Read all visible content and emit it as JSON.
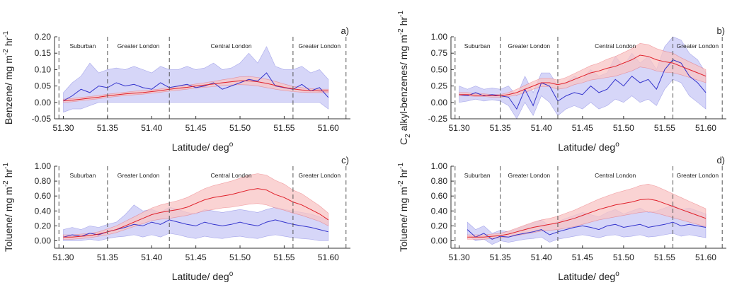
{
  "colors": {
    "blue": "#3333cc",
    "blue_fill": "#c8c8f6",
    "red": "#e0202a",
    "red_fill": "#f8c4c4",
    "axis": "#333333"
  },
  "xlabel_text": "Latitude/ deg",
  "xlabel_sup": "o",
  "regions": [
    "Suburban",
    "Greater London",
    "Central London",
    "Greater London"
  ],
  "chart_data": [
    {
      "type": "line",
      "panel": "a)",
      "ylabel_parts": [
        "Benzene/ mg m",
        "-2",
        " hr",
        "-1"
      ],
      "xlim": [
        51.29,
        51.625
      ],
      "ylim": [
        -0.05,
        0.2
      ],
      "xticks": [
        "51.30",
        "51.35",
        "51.40",
        "51.45",
        "51.50",
        "51.55",
        "51.60"
      ],
      "yticks": [
        "-0.05",
        "0.00",
        "0.05",
        "0.10",
        "0.15",
        "0.20"
      ],
      "boundaries": [
        51.295,
        51.35,
        51.42,
        51.56,
        51.62
      ],
      "x": [
        51.3,
        51.31,
        51.32,
        51.33,
        51.34,
        51.35,
        51.36,
        51.37,
        51.38,
        51.39,
        51.4,
        51.41,
        51.42,
        51.43,
        51.44,
        51.45,
        51.46,
        51.47,
        51.48,
        51.49,
        51.5,
        51.51,
        51.52,
        51.53,
        51.54,
        51.55,
        51.56,
        51.57,
        51.58,
        51.59,
        51.6
      ],
      "series": [
        {
          "color": "blue",
          "mean": [
            0.005,
            0.02,
            0.04,
            0.03,
            0.05,
            0.045,
            0.06,
            0.05,
            0.055,
            0.045,
            0.04,
            0.06,
            0.045,
            0.05,
            0.055,
            0.045,
            0.05,
            0.06,
            0.04,
            0.05,
            0.06,
            0.07,
            0.065,
            0.09,
            0.05,
            0.045,
            0.04,
            0.055,
            0.035,
            0.045,
            0.015
          ],
          "lower": [
            -0.03,
            -0.02,
            -0.02,
            -0.01,
            0.0,
            0.0,
            0.0,
            0.0,
            0.0,
            0.0,
            0.0,
            0.0,
            0.0,
            0.0,
            0.0,
            0.0,
            0.0,
            0.0,
            0.0,
            0.0,
            0.0,
            0.0,
            0.0,
            0.0,
            0.0,
            0.0,
            0.0,
            0.0,
            0.0,
            0.0,
            -0.02
          ],
          "upper": [
            0.03,
            0.06,
            0.08,
            0.12,
            0.09,
            0.1,
            0.105,
            0.1,
            0.11,
            0.1,
            0.09,
            0.11,
            0.1,
            0.1,
            0.11,
            0.1,
            0.105,
            0.12,
            0.1,
            0.105,
            0.12,
            0.15,
            0.12,
            0.17,
            0.11,
            0.1,
            0.1,
            0.11,
            0.09,
            0.1,
            0.07
          ]
        },
        {
          "color": "red",
          "mean": [
            0.005,
            0.007,
            0.01,
            0.013,
            0.016,
            0.02,
            0.023,
            0.026,
            0.028,
            0.03,
            0.033,
            0.036,
            0.04,
            0.043,
            0.046,
            0.05,
            0.053,
            0.056,
            0.06,
            0.063,
            0.066,
            0.066,
            0.063,
            0.058,
            0.052,
            0.046,
            0.041,
            0.038,
            0.036,
            0.035,
            0.035
          ],
          "lower": [
            0.0,
            0.002,
            0.005,
            0.008,
            0.011,
            0.015,
            0.018,
            0.021,
            0.023,
            0.025,
            0.028,
            0.031,
            0.034,
            0.037,
            0.04,
            0.044,
            0.046,
            0.048,
            0.051,
            0.053,
            0.054,
            0.053,
            0.05,
            0.045,
            0.04,
            0.036,
            0.033,
            0.031,
            0.03,
            0.03,
            0.03
          ],
          "upper": [
            0.01,
            0.012,
            0.015,
            0.018,
            0.021,
            0.025,
            0.028,
            0.031,
            0.034,
            0.036,
            0.038,
            0.041,
            0.046,
            0.049,
            0.052,
            0.056,
            0.06,
            0.064,
            0.069,
            0.073,
            0.078,
            0.079,
            0.076,
            0.071,
            0.064,
            0.056,
            0.049,
            0.045,
            0.042,
            0.04,
            0.04
          ]
        }
      ]
    },
    {
      "type": "line",
      "panel": "b)",
      "ylabel_parts": [
        "C",
        "2",
        " alkyl-benzenes/ mg m",
        "-2",
        " hr",
        "-1"
      ],
      "xlim": [
        51.29,
        51.625
      ],
      "ylim": [
        -0.25,
        1.0
      ],
      "xticks": [
        "51.30",
        "51.35",
        "51.40",
        "51.45",
        "51.50",
        "51.55",
        "51.60"
      ],
      "yticks": [
        "-0.25",
        "0.00",
        "0.25",
        "0.50",
        "0.75",
        "1.00"
      ],
      "boundaries": [
        51.295,
        51.35,
        51.42,
        51.56,
        51.62
      ],
      "x": [
        51.3,
        51.31,
        51.32,
        51.33,
        51.34,
        51.35,
        51.36,
        51.37,
        51.38,
        51.39,
        51.4,
        51.41,
        51.42,
        51.43,
        51.44,
        51.45,
        51.46,
        51.47,
        51.48,
        51.49,
        51.5,
        51.51,
        51.52,
        51.53,
        51.54,
        51.55,
        51.56,
        51.57,
        51.58,
        51.59,
        51.6
      ],
      "series": [
        {
          "color": "blue",
          "mean": [
            0.12,
            0.1,
            0.15,
            0.1,
            0.12,
            0.1,
            0.08,
            -0.1,
            0.2,
            -0.05,
            0.3,
            0.25,
            0.02,
            0.1,
            0.15,
            0.12,
            0.25,
            0.15,
            0.2,
            0.35,
            0.25,
            0.4,
            0.3,
            0.35,
            0.2,
            0.5,
            0.65,
            0.6,
            0.4,
            0.3,
            0.15
          ],
          "lower": [
            0.0,
            0.02,
            0.05,
            0.02,
            0.04,
            0.02,
            -0.05,
            -0.25,
            0.0,
            -0.2,
            0.1,
            0.0,
            -0.2,
            -0.1,
            -0.05,
            -0.1,
            0.0,
            -0.1,
            -0.05,
            0.05,
            0.0,
            0.1,
            0.0,
            0.05,
            -0.05,
            0.2,
            0.35,
            0.3,
            0.1,
            0.0,
            -0.1
          ],
          "upper": [
            0.25,
            0.2,
            0.25,
            0.2,
            0.22,
            0.2,
            0.25,
            0.1,
            0.4,
            0.15,
            0.45,
            0.45,
            0.25,
            0.3,
            0.4,
            0.35,
            0.5,
            0.4,
            0.45,
            0.7,
            0.55,
            0.75,
            0.6,
            0.7,
            0.5,
            0.85,
            1.0,
            0.95,
            0.75,
            0.65,
            0.45
          ]
        },
        {
          "color": "red",
          "mean": [
            0.12,
            0.12,
            0.11,
            0.11,
            0.1,
            0.1,
            0.12,
            0.15,
            0.2,
            0.25,
            0.3,
            0.3,
            0.27,
            0.3,
            0.35,
            0.4,
            0.45,
            0.48,
            0.52,
            0.55,
            0.6,
            0.65,
            0.72,
            0.7,
            0.65,
            0.62,
            0.6,
            0.55,
            0.5,
            0.45,
            0.4
          ],
          "lower": [
            0.1,
            0.1,
            0.09,
            0.09,
            0.08,
            0.08,
            0.09,
            0.11,
            0.15,
            0.2,
            0.24,
            0.24,
            0.2,
            0.22,
            0.27,
            0.3,
            0.34,
            0.36,
            0.38,
            0.4,
            0.44,
            0.48,
            0.54,
            0.52,
            0.48,
            0.46,
            0.45,
            0.42,
            0.38,
            0.34,
            0.3
          ],
          "upper": [
            0.15,
            0.15,
            0.13,
            0.13,
            0.12,
            0.12,
            0.15,
            0.2,
            0.26,
            0.32,
            0.37,
            0.37,
            0.34,
            0.38,
            0.44,
            0.5,
            0.56,
            0.6,
            0.66,
            0.7,
            0.76,
            0.82,
            0.9,
            0.88,
            0.82,
            0.78,
            0.75,
            0.68,
            0.62,
            0.56,
            0.5
          ]
        }
      ]
    },
    {
      "type": "line",
      "panel": "c)",
      "ylabel_parts": [
        "Toluene/ mg m",
        "-2",
        " hr",
        "-1"
      ],
      "xlim": [
        51.29,
        51.625
      ],
      "ylim": [
        -0.1,
        1.0
      ],
      "xticks": [
        "51.30",
        "51.35",
        "51.40",
        "51.45",
        "51.50",
        "51.55",
        "51.60"
      ],
      "yticks": [
        "0.00",
        "0.20",
        "0.40",
        "0.60",
        "0.80",
        "1.00"
      ],
      "boundaries": [
        51.295,
        51.35,
        51.42,
        51.56,
        51.62
      ],
      "x": [
        51.3,
        51.31,
        51.32,
        51.33,
        51.34,
        51.35,
        51.36,
        51.37,
        51.38,
        51.39,
        51.4,
        51.41,
        51.42,
        51.43,
        51.44,
        51.45,
        51.46,
        51.47,
        51.48,
        51.49,
        51.5,
        51.51,
        51.52,
        51.53,
        51.54,
        51.55,
        51.56,
        51.57,
        51.58,
        51.59,
        51.6
      ],
      "series": [
        {
          "color": "blue",
          "mean": [
            0.05,
            0.08,
            0.06,
            0.1,
            0.08,
            0.12,
            0.15,
            0.18,
            0.22,
            0.2,
            0.25,
            0.22,
            0.28,
            0.25,
            0.22,
            0.2,
            0.25,
            0.22,
            0.2,
            0.22,
            0.25,
            0.22,
            0.2,
            0.25,
            0.28,
            0.25,
            0.22,
            0.2,
            0.18,
            0.15,
            0.12
          ],
          "lower": [
            0.0,
            0.0,
            0.0,
            0.02,
            0.0,
            0.03,
            0.05,
            0.06,
            0.08,
            0.05,
            0.08,
            0.05,
            0.1,
            0.08,
            0.05,
            0.03,
            0.06,
            0.04,
            0.03,
            0.05,
            0.06,
            0.04,
            0.03,
            0.06,
            0.08,
            0.06,
            0.04,
            0.03,
            0.02,
            0.0,
            0.0
          ],
          "upper": [
            0.15,
            0.18,
            0.15,
            0.2,
            0.18,
            0.22,
            0.25,
            0.35,
            0.48,
            0.4,
            0.42,
            0.38,
            0.45,
            0.42,
            0.38,
            0.36,
            0.42,
            0.4,
            0.38,
            0.4,
            0.42,
            0.4,
            0.38,
            0.42,
            0.45,
            0.42,
            0.4,
            0.38,
            0.36,
            0.32,
            0.28
          ]
        },
        {
          "color": "red",
          "mean": [
            0.05,
            0.05,
            0.06,
            0.07,
            0.09,
            0.12,
            0.15,
            0.2,
            0.25,
            0.3,
            0.35,
            0.38,
            0.4,
            0.42,
            0.45,
            0.5,
            0.55,
            0.58,
            0.6,
            0.62,
            0.65,
            0.68,
            0.7,
            0.68,
            0.62,
            0.58,
            0.52,
            0.48,
            0.42,
            0.36,
            0.28
          ],
          "lower": [
            0.02,
            0.02,
            0.03,
            0.04,
            0.06,
            0.08,
            0.11,
            0.15,
            0.19,
            0.23,
            0.27,
            0.29,
            0.3,
            0.32,
            0.34,
            0.37,
            0.4,
            0.42,
            0.44,
            0.45,
            0.47,
            0.49,
            0.5,
            0.48,
            0.44,
            0.41,
            0.37,
            0.34,
            0.3,
            0.26,
            0.2
          ],
          "upper": [
            0.08,
            0.08,
            0.09,
            0.1,
            0.12,
            0.16,
            0.2,
            0.26,
            0.32,
            0.38,
            0.44,
            0.48,
            0.51,
            0.54,
            0.58,
            0.64,
            0.7,
            0.74,
            0.77,
            0.8,
            0.84,
            0.88,
            0.9,
            0.88,
            0.81,
            0.76,
            0.68,
            0.63,
            0.55,
            0.47,
            0.37
          ]
        }
      ]
    },
    {
      "type": "line",
      "panel": "d)",
      "ylabel_parts": [
        "Toluene/ mg m",
        "-2",
        " hr",
        "-1"
      ],
      "xlim": [
        51.29,
        51.625
      ],
      "ylim": [
        -0.1,
        1.0
      ],
      "xticks": [
        "51.30",
        "51.35",
        "51.40",
        "51.45",
        "51.50",
        "51.55",
        "51.60"
      ],
      "yticks": [
        "0.00",
        "0.20",
        "0.40",
        "0.60",
        "0.80",
        "1.00"
      ],
      "boundaries": [
        51.295,
        51.35,
        51.42,
        51.56,
        51.62
      ],
      "x": [
        51.31,
        51.32,
        51.33,
        51.34,
        51.35,
        51.36,
        51.37,
        51.38,
        51.39,
        51.4,
        51.41,
        51.42,
        51.43,
        51.44,
        51.45,
        51.46,
        51.47,
        51.48,
        51.49,
        51.5,
        51.51,
        51.52,
        51.53,
        51.54,
        51.55,
        51.56,
        51.57,
        51.58,
        51.59,
        51.6
      ],
      "series": [
        {
          "color": "blue",
          "mean": [
            0.15,
            0.05,
            0.1,
            0.02,
            0.06,
            0.05,
            0.08,
            0.1,
            0.12,
            0.15,
            0.08,
            0.12,
            0.15,
            0.18,
            0.2,
            0.18,
            0.15,
            0.2,
            0.22,
            0.18,
            0.2,
            0.22,
            0.18,
            0.2,
            0.22,
            0.25,
            0.2,
            0.22,
            0.2,
            0.18
          ],
          "lower": [
            0.08,
            0.0,
            0.02,
            -0.05,
            0.0,
            -0.02,
            0.0,
            0.02,
            0.03,
            0.05,
            -0.02,
            0.02,
            0.04,
            0.06,
            0.08,
            0.06,
            0.04,
            0.07,
            0.08,
            0.05,
            0.06,
            0.08,
            0.05,
            0.06,
            0.08,
            0.1,
            0.06,
            0.08,
            0.06,
            0.04
          ],
          "upper": [
            0.25,
            0.15,
            0.2,
            0.1,
            0.14,
            0.12,
            0.16,
            0.2,
            0.24,
            0.28,
            0.2,
            0.26,
            0.3,
            0.34,
            0.38,
            0.35,
            0.32,
            0.38,
            0.42,
            0.36,
            0.4,
            0.44,
            0.38,
            0.4,
            0.44,
            0.48,
            0.42,
            0.44,
            0.4,
            0.36
          ]
        },
        {
          "color": "red",
          "mean": [
            0.05,
            0.05,
            0.05,
            0.06,
            0.07,
            0.09,
            0.12,
            0.15,
            0.18,
            0.2,
            0.22,
            0.24,
            0.27,
            0.3,
            0.34,
            0.38,
            0.42,
            0.45,
            0.48,
            0.5,
            0.52,
            0.55,
            0.56,
            0.54,
            0.5,
            0.46,
            0.42,
            0.38,
            0.34,
            0.3
          ],
          "lower": [
            0.02,
            0.02,
            0.02,
            0.03,
            0.04,
            0.05,
            0.07,
            0.09,
            0.11,
            0.13,
            0.14,
            0.15,
            0.17,
            0.19,
            0.22,
            0.25,
            0.28,
            0.3,
            0.32,
            0.34,
            0.36,
            0.38,
            0.39,
            0.37,
            0.34,
            0.31,
            0.28,
            0.25,
            0.22,
            0.19
          ],
          "upper": [
            0.08,
            0.08,
            0.08,
            0.09,
            0.1,
            0.13,
            0.17,
            0.21,
            0.25,
            0.28,
            0.3,
            0.33,
            0.37,
            0.41,
            0.46,
            0.51,
            0.56,
            0.6,
            0.64,
            0.67,
            0.7,
            0.74,
            0.76,
            0.73,
            0.68,
            0.63,
            0.58,
            0.53,
            0.48,
            0.43
          ]
        }
      ]
    }
  ]
}
